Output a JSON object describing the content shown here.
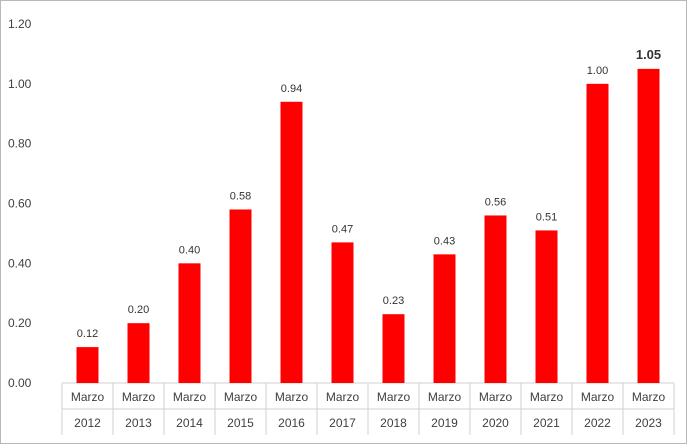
{
  "chart_data": {
    "type": "bar",
    "categories": [
      [
        "Marzo",
        "2012"
      ],
      [
        "Marzo",
        "2013"
      ],
      [
        "Marzo",
        "2014"
      ],
      [
        "Marzo",
        "2015"
      ],
      [
        "Marzo",
        "2016"
      ],
      [
        "Marzo",
        "2017"
      ],
      [
        "Marzo",
        "2018"
      ],
      [
        "Marzo",
        "2019"
      ],
      [
        "Marzo",
        "2020"
      ],
      [
        "Marzo",
        "2021"
      ],
      [
        "Marzo",
        "2022"
      ],
      [
        "Marzo",
        "2023"
      ]
    ],
    "values": [
      0.12,
      0.2,
      0.4,
      0.58,
      0.94,
      0.47,
      0.23,
      0.43,
      0.56,
      0.51,
      1.0,
      1.05
    ],
    "value_labels": [
      "0.12",
      "0.20",
      "0.40",
      "0.58",
      "0.94",
      "0.47",
      "0.23",
      "0.43",
      "0.56",
      "0.51",
      "1.00",
      "1.05"
    ],
    "highlight_last_label": true,
    "ylim": [
      0,
      1.2
    ],
    "yticks": [
      "0.00",
      "0.20",
      "0.40",
      "0.60",
      "0.80",
      "1.00",
      "1.20"
    ],
    "bar_color": "#ff0000",
    "grid": false,
    "title": "",
    "xlabel": "",
    "ylabel": ""
  }
}
